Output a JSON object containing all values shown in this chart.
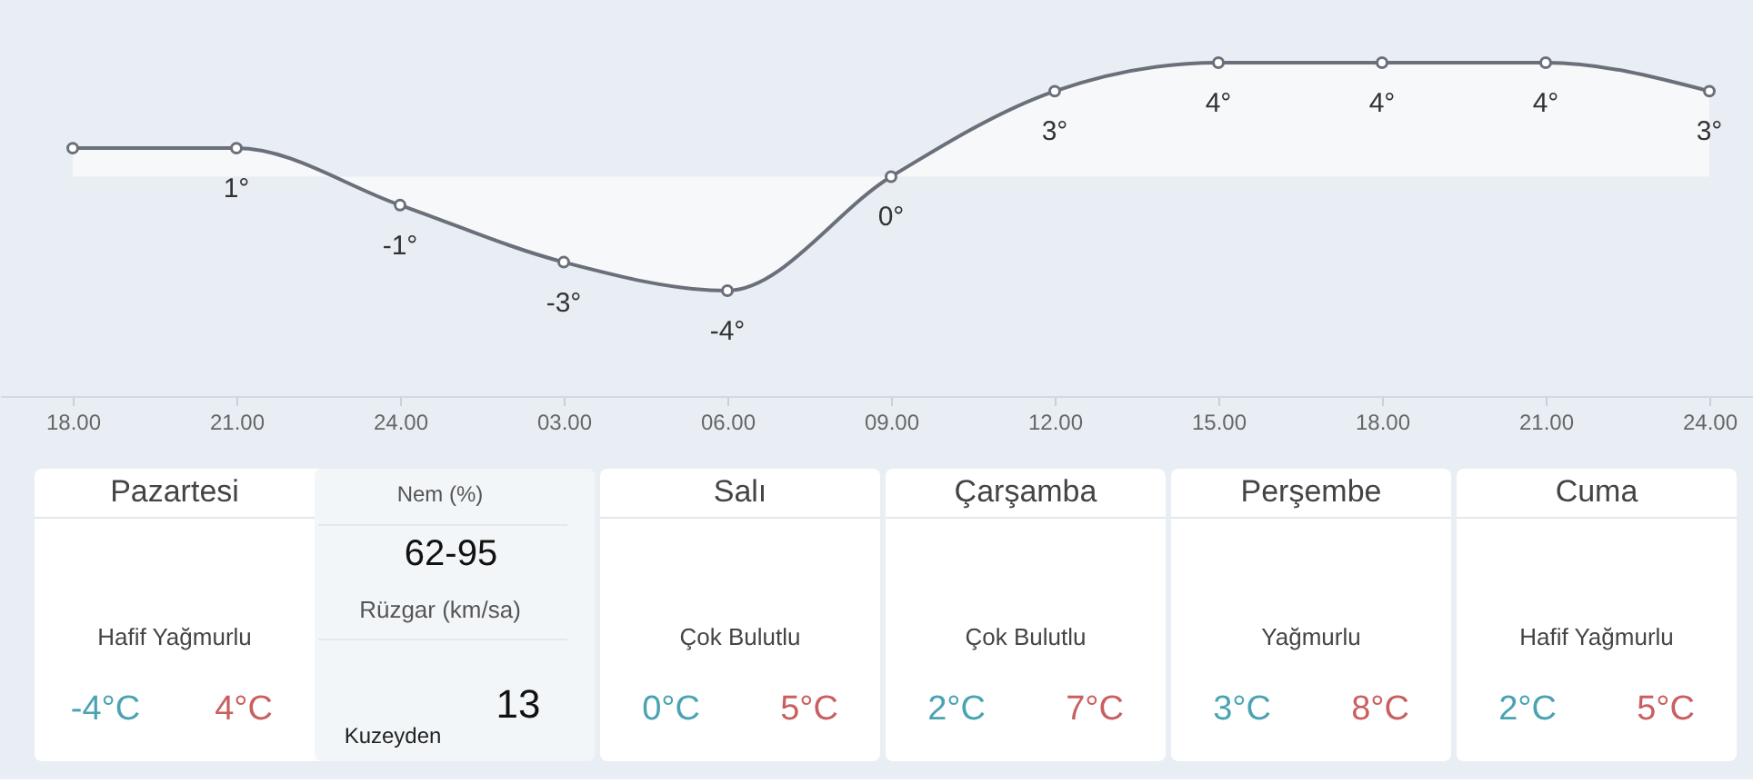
{
  "chart_data": [
    {
      "type": "area",
      "categories": [
        "18.00",
        "21.00",
        "24.00",
        "03.00",
        "06.00",
        "09.00",
        "12.00",
        "15.00",
        "18.00",
        "21.00",
        "24.00"
      ],
      "series": [
        {
          "color": "#6b6f7a",
          "values": [
            1,
            1,
            -1,
            -3,
            -4,
            0,
            3,
            4,
            4,
            4,
            3
          ],
          "value_labels": [
            null,
            "1°",
            "-1°",
            "-3°",
            "-4°",
            "0°",
            "3°",
            "4°",
            "4°",
            "4°",
            "3°"
          ]
        }
      ],
      "ylim": [
        -7.7,
        6.2
      ],
      "tick_labels": "x",
      "grid": false,
      "marker": "circle",
      "line_style": "solid"
    },
    {
      "type": "other",
      "categories": [
        "Pazartesi",
        "Salı",
        "Çarşamba",
        "Perşembe",
        "Cuma"
      ],
      "annotations": [
        "Hafif Yağmurlu",
        "-4°C",
        "4°C",
        "Çok Bulutlu",
        "0°C",
        "5°C",
        "Çok Bulutlu",
        "2°C",
        "7°C",
        "Yağmurlu",
        "3°C",
        "8°C",
        "Hafif Yağmurlu",
        "2°C",
        "5°C",
        "Nem (%)",
        "62-95",
        "Rüzgar (km/sa)",
        "13",
        "Kuzeyden"
      ]
    }
  ]
}
